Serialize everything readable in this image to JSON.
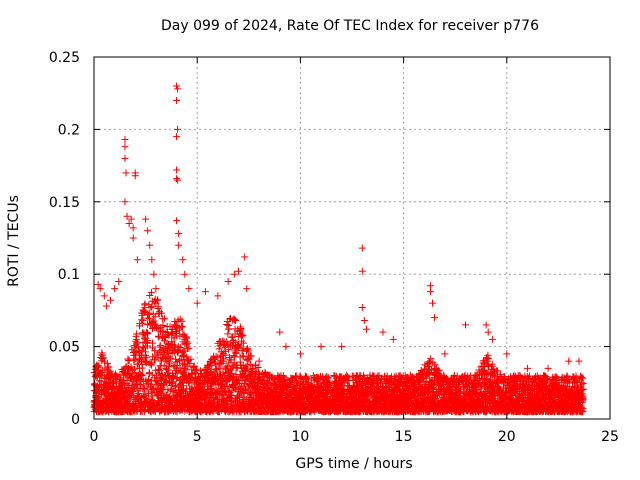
{
  "chart_data": {
    "type": "scatter",
    "title": "Day 099 of 2024, Rate Of TEC Index for receiver p776",
    "xlabel": "GPS time / hours",
    "ylabel": "ROTI / TECUs",
    "xlim": [
      0,
      25
    ],
    "ylim": [
      0,
      0.25
    ],
    "xticks": [
      0,
      5,
      10,
      15,
      20,
      25
    ],
    "yticks": [
      0,
      0.05,
      0.1,
      0.15,
      0.2,
      0.25
    ],
    "xtick_labels": [
      "0",
      "5",
      "10",
      "15",
      "20",
      "25"
    ],
    "ytick_labels": [
      "0",
      "0.05",
      "0.1",
      "0.15",
      "0.2",
      "0.25"
    ],
    "grid": true,
    "marker": "+",
    "color": "#ff0000",
    "x_data_range": [
      0,
      23.7
    ],
    "series": [
      {
        "name": "ROTI",
        "points": [
          [
            0.2,
            0.093
          ],
          [
            0.3,
            0.09
          ],
          [
            0.5,
            0.085
          ],
          [
            0.6,
            0.078
          ],
          [
            0.8,
            0.082
          ],
          [
            1.0,
            0.09
          ],
          [
            1.2,
            0.095
          ],
          [
            1.5,
            0.193
          ],
          [
            1.5,
            0.188
          ],
          [
            1.5,
            0.18
          ],
          [
            1.55,
            0.17
          ],
          [
            1.5,
            0.15
          ],
          [
            1.6,
            0.14
          ],
          [
            1.7,
            0.135
          ],
          [
            1.8,
            0.138
          ],
          [
            1.9,
            0.132
          ],
          [
            2.0,
            0.17
          ],
          [
            2.0,
            0.168
          ],
          [
            1.9,
            0.125
          ],
          [
            2.1,
            0.11
          ],
          [
            2.5,
            0.138
          ],
          [
            2.6,
            0.13
          ],
          [
            2.7,
            0.12
          ],
          [
            2.8,
            0.11
          ],
          [
            2.9,
            0.1
          ],
          [
            3.0,
            0.09
          ],
          [
            4.0,
            0.23
          ],
          [
            4.05,
            0.228
          ],
          [
            4.0,
            0.22
          ],
          [
            4.05,
            0.2
          ],
          [
            4.0,
            0.195
          ],
          [
            4.0,
            0.172
          ],
          [
            4.0,
            0.166
          ],
          [
            4.05,
            0.165
          ],
          [
            4.0,
            0.137
          ],
          [
            4.1,
            0.128
          ],
          [
            4.1,
            0.12
          ],
          [
            4.3,
            0.11
          ],
          [
            4.4,
            0.1
          ],
          [
            4.6,
            0.09
          ],
          [
            5.0,
            0.08
          ],
          [
            5.4,
            0.088
          ],
          [
            6.0,
            0.085
          ],
          [
            6.5,
            0.095
          ],
          [
            6.8,
            0.1
          ],
          [
            7.0,
            0.102
          ],
          [
            7.3,
            0.112
          ],
          [
            7.4,
            0.09
          ],
          [
            8.0,
            0.04
          ],
          [
            9.0,
            0.06
          ],
          [
            9.3,
            0.05
          ],
          [
            10.0,
            0.045
          ],
          [
            11.0,
            0.05
          ],
          [
            12.0,
            0.05
          ],
          [
            13.0,
            0.118
          ],
          [
            13.0,
            0.102
          ],
          [
            13.0,
            0.077
          ],
          [
            13.1,
            0.068
          ],
          [
            13.2,
            0.062
          ],
          [
            14.0,
            0.06
          ],
          [
            14.5,
            0.055
          ],
          [
            16.3,
            0.092
          ],
          [
            16.3,
            0.088
          ],
          [
            16.4,
            0.08
          ],
          [
            16.5,
            0.07
          ],
          [
            17.0,
            0.045
          ],
          [
            18.0,
            0.065
          ],
          [
            19.0,
            0.065
          ],
          [
            19.1,
            0.06
          ],
          [
            19.3,
            0.055
          ],
          [
            20.0,
            0.045
          ],
          [
            21.0,
            0.035
          ],
          [
            22.0,
            0.035
          ],
          [
            23.0,
            0.04
          ],
          [
            23.5,
            0.04
          ]
        ]
      }
    ]
  }
}
